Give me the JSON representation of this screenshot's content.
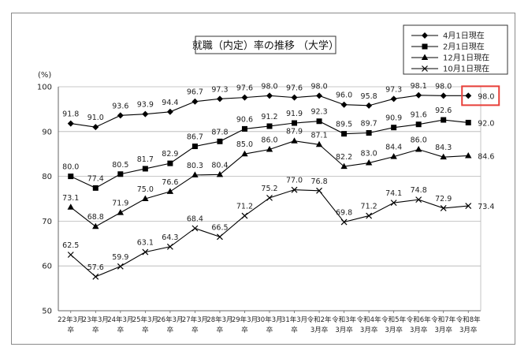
{
  "chart_data": {
    "type": "line",
    "title": "就職（内定）率の推移 （大学）",
    "ylabel": "(%)",
    "ylim": [
      50,
      100
    ],
    "yticks": [
      "50",
      "60",
      "70",
      "80",
      "90",
      "100"
    ],
    "grid": true,
    "legend_position": "top-right",
    "categories": [
      [
        "22年3月",
        "卒"
      ],
      [
        "23年3月",
        "卒"
      ],
      [
        "24年3月",
        "卒"
      ],
      [
        "25年3月",
        "卒"
      ],
      [
        "26年3月",
        "卒"
      ],
      [
        "27年3月",
        "卒"
      ],
      [
        "28年3月",
        "卒"
      ],
      [
        "29年3月",
        "卒"
      ],
      [
        "30年3月",
        "卒"
      ],
      [
        "31年3月",
        "卒"
      ],
      [
        "令和2年",
        "3月卒"
      ],
      [
        "令和3年",
        "3月卒"
      ],
      [
        "令和4年",
        "3月卒"
      ],
      [
        "令和5年",
        "3月卒"
      ],
      [
        "令和6年",
        "3月卒"
      ],
      [
        "令和7年",
        "3月卒"
      ],
      [
        "令和8年",
        "3月卒"
      ]
    ],
    "series": [
      {
        "name": "4月1日現在",
        "marker": "diamond",
        "values": [
          91.8,
          91.0,
          93.6,
          93.9,
          94.4,
          96.7,
          97.3,
          97.6,
          98.0,
          97.6,
          98.0,
          96.0,
          95.8,
          97.3,
          98.1,
          98.0,
          98.0
        ],
        "labels": [
          "91.8",
          "91.0",
          "93.6",
          "93.9",
          "94.4",
          "96.7",
          "97.3",
          "97.6",
          "98.0",
          "97.6",
          "98.0",
          "96.0",
          "95.8",
          "97.3",
          "98.1",
          "98.0",
          "98.0"
        ]
      },
      {
        "name": "2月1日現在",
        "marker": "square",
        "values": [
          80.0,
          77.4,
          80.5,
          81.7,
          82.9,
          86.7,
          87.8,
          90.6,
          91.2,
          91.9,
          92.3,
          89.5,
          89.7,
          90.9,
          91.6,
          92.6,
          92.0
        ],
        "labels": [
          "80.0",
          "77.4",
          "80.5",
          "81.7",
          "82.9",
          "86.7",
          "87.8",
          "90.6",
          "91.2",
          "91.9",
          "92.3",
          "89.5",
          "89.7",
          "90.9",
          "91.6",
          "92.6",
          "92.0"
        ]
      },
      {
        "name": "12月1日現在",
        "marker": "triangle",
        "values": [
          73.1,
          68.8,
          71.9,
          75.0,
          76.6,
          80.3,
          80.4,
          85.0,
          86.0,
          87.9,
          87.1,
          82.2,
          83.0,
          84.4,
          86.0,
          84.3,
          84.6
        ],
        "labels": [
          "73.1",
          "68.8",
          "71.9",
          "75.0",
          "76.6",
          "80.3",
          "80.4",
          "85.0",
          "86.0",
          "87.9",
          "87.1",
          "82.2",
          "83.0",
          "84.4",
          "86.0",
          "84.3",
          "84.6"
        ]
      },
      {
        "name": "10月1日現在",
        "marker": "x",
        "values": [
          62.5,
          57.6,
          59.9,
          63.1,
          64.3,
          68.4,
          66.5,
          71.2,
          75.2,
          77.0,
          76.8,
          69.8,
          71.2,
          74.1,
          74.8,
          72.9,
          73.4
        ],
        "labels": [
          "62.5",
          "57.6",
          "59.9",
          "63.1",
          "64.3",
          "68.4",
          "66.5",
          "71.2",
          "75.2",
          "77.0",
          "76.8",
          "69.8",
          "71.2",
          "74.1",
          "74.8",
          "72.9",
          "73.4"
        ]
      }
    ],
    "highlight": {
      "series": 0,
      "index": 16,
      "color": "#e8403a"
    }
  }
}
